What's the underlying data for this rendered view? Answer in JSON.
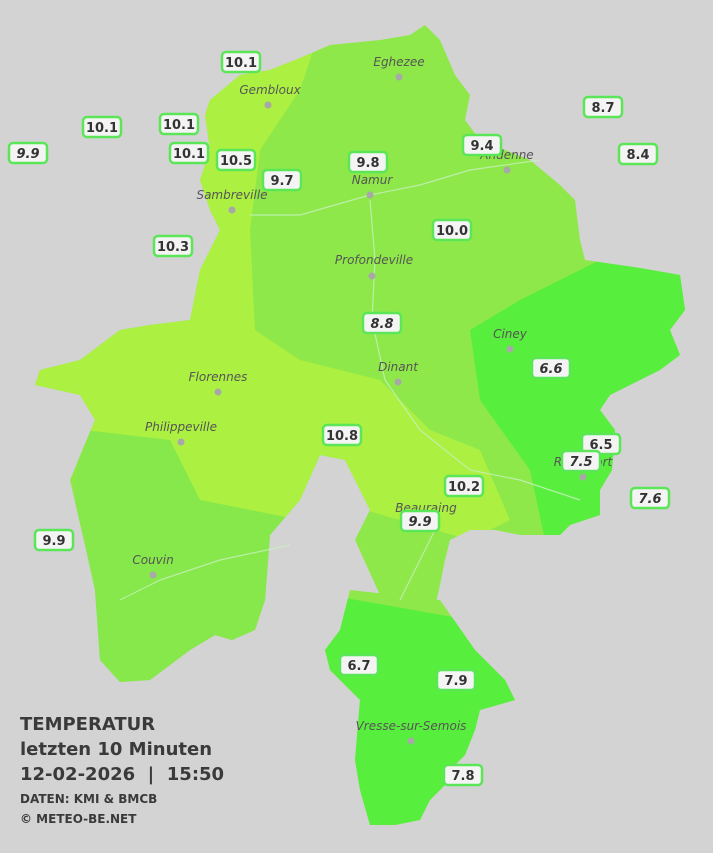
{
  "legend": {
    "title": "TEMPERATUR",
    "subtitle": "letzten 10 Minuten",
    "datetime": "12-02-2026  |  15:50",
    "source": "DATEN: KMI & BMCB",
    "credit": "© METEO-BE.NET"
  },
  "places": [
    "Eghezee",
    "Gembloux",
    "Andenne",
    "Namur",
    "Sambreville",
    "Profondeville",
    "Ciney",
    "Dinant",
    "Florennes",
    "Philippeville",
    "Rochefort",
    "Beauraing",
    "Couvin",
    "Vresse-sur-Semois"
  ],
  "stations": [
    {
      "label": "10.1",
      "italic": false
    },
    {
      "label": "10.1",
      "italic": false
    },
    {
      "label": "9.9",
      "italic": true
    },
    {
      "label": "10.1",
      "italic": false
    },
    {
      "label": "10.1",
      "italic": false
    },
    {
      "label": "10.5",
      "italic": false
    },
    {
      "label": "9.7",
      "italic": false
    },
    {
      "label": "9.8",
      "italic": false
    },
    {
      "label": "9.4",
      "italic": false
    },
    {
      "label": "8.7",
      "italic": false
    },
    {
      "label": "8.4",
      "italic": false
    },
    {
      "label": "10.3",
      "italic": false
    },
    {
      "label": "10.0",
      "italic": false
    },
    {
      "label": "8.8",
      "italic": true
    },
    {
      "label": "6.6",
      "italic": true
    },
    {
      "label": "10.8",
      "italic": false
    },
    {
      "label": "6.5",
      "italic": false
    },
    {
      "label": "7.5",
      "italic": true
    },
    {
      "label": "7.6",
      "italic": true
    },
    {
      "label": "10.2",
      "italic": false
    },
    {
      "label": "9.9",
      "italic": true
    },
    {
      "label": "9.9",
      "italic": false
    },
    {
      "label": "6.7",
      "italic": false
    },
    {
      "label": "7.9",
      "italic": false
    },
    {
      "label": "7.8",
      "italic": false
    }
  ]
}
